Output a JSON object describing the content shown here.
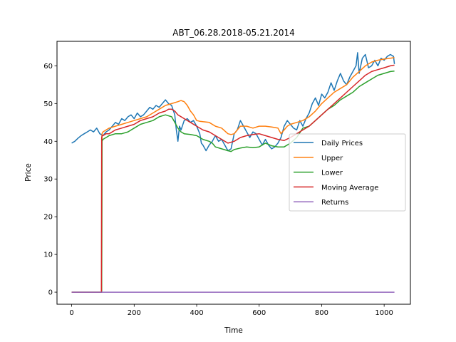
{
  "chart_data": {
    "type": "line",
    "title": "ABT_06.28.2018-05.21.2014",
    "xlabel": "Time",
    "ylabel": "Price",
    "xlim": [
      -47,
      1084
    ],
    "ylim": [
      -3.2,
      66.5
    ],
    "xticks": [
      0,
      200,
      400,
      600,
      800,
      1000
    ],
    "yticks": [
      0,
      10,
      20,
      30,
      40,
      50,
      60
    ],
    "grid": false,
    "legend_position": "center-right",
    "series": [
      {
        "name": "Daily Prices",
        "color": "#1f77b4",
        "x": [
          0,
          10,
          20,
          30,
          40,
          50,
          60,
          70,
          80,
          90,
          100,
          110,
          120,
          130,
          140,
          150,
          160,
          170,
          180,
          190,
          200,
          210,
          220,
          230,
          240,
          250,
          260,
          270,
          280,
          290,
          300,
          310,
          320,
          330,
          335,
          340,
          345,
          350,
          360,
          370,
          380,
          390,
          400,
          410,
          415,
          420,
          430,
          440,
          450,
          460,
          470,
          480,
          490,
          500,
          510,
          520,
          530,
          540,
          550,
          560,
          570,
          580,
          590,
          600,
          610,
          620,
          630,
          640,
          650,
          660,
          670,
          680,
          690,
          700,
          710,
          720,
          730,
          740,
          750,
          760,
          770,
          780,
          790,
          800,
          810,
          820,
          830,
          840,
          850,
          860,
          870,
          880,
          890,
          900,
          910,
          915,
          920,
          930,
          940,
          950,
          960,
          970,
          980,
          990,
          1000,
          1010,
          1020,
          1030,
          1033
        ],
        "y": [
          39.5,
          40.0,
          40.8,
          41.5,
          42.0,
          42.5,
          43.0,
          42.5,
          43.5,
          42.0,
          41.5,
          42.5,
          43.0,
          44.0,
          45.0,
          44.5,
          46.0,
          45.5,
          46.5,
          47.0,
          46.0,
          47.5,
          46.5,
          47.0,
          48.0,
          49.0,
          48.5,
          49.5,
          49.0,
          50.0,
          51.0,
          50.0,
          49.5,
          47.0,
          43.0,
          40.0,
          44.0,
          43.0,
          45.5,
          46.0,
          45.0,
          45.5,
          44.0,
          42.0,
          39.5,
          39.0,
          37.5,
          39.0,
          40.0,
          41.5,
          40.0,
          40.5,
          39.0,
          37.5,
          38.0,
          42.0,
          43.0,
          45.5,
          44.0,
          42.5,
          41.0,
          42.5,
          42.0,
          40.5,
          39.0,
          40.5,
          39.0,
          38.0,
          38.5,
          39.5,
          41.0,
          44.0,
          45.5,
          44.5,
          43.5,
          43.0,
          45.5,
          44.0,
          46.0,
          47.5,
          50.0,
          51.5,
          49.5,
          52.5,
          51.5,
          53.0,
          55.5,
          53.5,
          56.0,
          58.0,
          56.0,
          55.0,
          57.0,
          58.5,
          60.0,
          63.5,
          58.0,
          62.0,
          63.0,
          59.5,
          60.0,
          61.5,
          60.0,
          62.0,
          61.5,
          62.5,
          63.0,
          62.5,
          60.5
        ]
      },
      {
        "name": "Upper",
        "color": "#ff7f0e",
        "x": [
          0,
          96,
          97,
          100,
          110,
          120,
          140,
          160,
          180,
          200,
          220,
          240,
          260,
          280,
          300,
          320,
          340,
          350,
          360,
          370,
          380,
          390,
          400,
          410,
          420,
          440,
          460,
          480,
          500,
          510,
          520,
          530,
          540,
          560,
          580,
          600,
          620,
          640,
          660,
          670,
          680,
          690,
          700,
          720,
          740,
          760,
          780,
          800,
          820,
          840,
          860,
          880,
          900,
          920,
          940,
          960,
          980,
          1000,
          1020,
          1033
        ],
        "y": [
          0,
          0,
          42.0,
          42.5,
          43.0,
          43.5,
          44.0,
          44.5,
          45.0,
          45.5,
          46.0,
          46.5,
          47.5,
          48.5,
          49.5,
          50.0,
          50.5,
          50.8,
          50.5,
          49.5,
          48.0,
          47.0,
          45.5,
          45.3,
          45.2,
          45.0,
          44.0,
          43.5,
          42.0,
          41.8,
          42.0,
          43.0,
          44.0,
          44.0,
          43.5,
          44.0,
          44.0,
          43.8,
          43.5,
          42.0,
          43.0,
          44.0,
          44.5,
          45.0,
          45.5,
          46.5,
          48.0,
          50.0,
          51.5,
          53.0,
          54.0,
          55.0,
          57.0,
          58.5,
          60.0,
          61.0,
          61.5,
          61.8,
          62.0,
          62.2
        ]
      },
      {
        "name": "Lower",
        "color": "#2ca02c",
        "x": [
          0,
          96,
          97,
          100,
          110,
          120,
          140,
          160,
          180,
          200,
          220,
          240,
          260,
          280,
          300,
          320,
          330,
          340,
          350,
          360,
          380,
          400,
          420,
          440,
          450,
          460,
          480,
          500,
          510,
          520,
          540,
          560,
          580,
          600,
          620,
          640,
          660,
          680,
          700,
          720,
          740,
          760,
          780,
          800,
          820,
          840,
          860,
          880,
          900,
          920,
          940,
          960,
          980,
          1000,
          1020,
          1033
        ],
        "y": [
          0,
          0,
          40.0,
          40.5,
          41.0,
          41.5,
          42.0,
          42.0,
          42.5,
          43.5,
          44.5,
          45.0,
          45.5,
          46.5,
          47.0,
          46.5,
          45.0,
          43.5,
          42.5,
          42.0,
          41.8,
          41.5,
          40.5,
          40.0,
          39.5,
          38.5,
          38.0,
          37.5,
          37.3,
          37.8,
          38.2,
          38.5,
          38.3,
          38.5,
          39.5,
          38.8,
          38.5,
          38.5,
          39.5,
          41.0,
          43.5,
          44.0,
          45.5,
          47.0,
          48.5,
          49.5,
          51.0,
          52.0,
          53.0,
          54.5,
          55.5,
          56.5,
          57.5,
          58.0,
          58.5,
          58.6
        ]
      },
      {
        "name": "Moving Average",
        "color": "#d62728",
        "x": [
          0,
          95,
          96,
          97,
          100,
          110,
          120,
          140,
          160,
          180,
          200,
          220,
          240,
          260,
          280,
          300,
          310,
          320,
          330,
          340,
          360,
          380,
          400,
          420,
          440,
          460,
          480,
          500,
          520,
          540,
          560,
          580,
          600,
          620,
          640,
          660,
          680,
          700,
          720,
          740,
          760,
          780,
          800,
          820,
          840,
          860,
          880,
          900,
          920,
          940,
          960,
          980,
          1000,
          1020,
          1033
        ],
        "y": [
          0,
          0,
          41.0,
          41.5,
          41.5,
          42.0,
          42.0,
          43.0,
          43.5,
          44.0,
          44.5,
          45.5,
          46.0,
          46.5,
          47.5,
          48.0,
          48.5,
          48.5,
          48.0,
          47.0,
          46.0,
          45.0,
          44.0,
          43.0,
          42.5,
          41.5,
          40.5,
          39.5,
          40.0,
          41.0,
          41.5,
          41.8,
          42.0,
          41.5,
          41.0,
          40.5,
          40.2,
          41.0,
          42.0,
          43.0,
          44.0,
          45.5,
          47.0,
          48.5,
          50.0,
          51.5,
          53.0,
          54.5,
          56.0,
          57.5,
          58.5,
          59.0,
          59.5,
          60.0,
          60.2
        ]
      },
      {
        "name": "Returns",
        "color": "#9467bd",
        "x": [
          0,
          1033
        ],
        "y": [
          0,
          0
        ]
      }
    ]
  }
}
